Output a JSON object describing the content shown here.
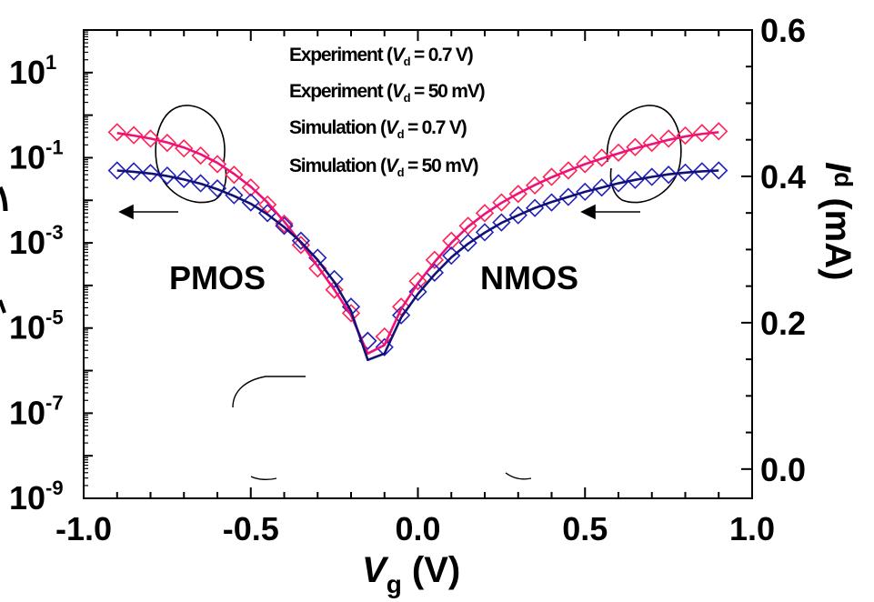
{
  "chart_data": {
    "type": "line",
    "x": [
      -0.9,
      -0.85,
      -0.8,
      -0.75,
      -0.7,
      -0.65,
      -0.6,
      -0.55,
      -0.5,
      -0.45,
      -0.4,
      -0.35,
      -0.3,
      -0.25,
      -0.2,
      -0.15,
      -0.1,
      -0.05,
      0.0,
      0.05,
      0.1,
      0.15,
      0.2,
      0.25,
      0.3,
      0.35,
      0.4,
      0.45,
      0.5,
      0.55,
      0.6,
      0.65,
      0.7,
      0.75,
      0.8,
      0.85,
      0.9
    ],
    "xlabel": {
      "base": "V",
      "sub": "g",
      "unit": " (V)"
    },
    "ylabel_right": {
      "base": "I",
      "sub": "d",
      "unit": " (mA)"
    },
    "xlim": [
      -1.0,
      1.0
    ],
    "ylim_log": [
      -9,
      2
    ],
    "ylim_right": [
      -0.04,
      0.6
    ],
    "x_ticks": [
      "-1.0",
      "-0.5",
      "0.0",
      "0.5",
      "1.0"
    ],
    "y_left_ticks": [
      {
        "base": "10",
        "exp": "1",
        "pow": 1
      },
      {
        "base": "10",
        "exp": "-1",
        "pow": -1
      },
      {
        "base": "10",
        "exp": "-3",
        "pow": -3
      },
      {
        "base": "10",
        "exp": "-5",
        "pow": -5
      },
      {
        "base": "10",
        "exp": "-7",
        "pow": -7
      },
      {
        "base": "10",
        "exp": "-9",
        "pow": -9
      }
    ],
    "y_right_ticks": [
      "0.0",
      "0.2",
      "0.4",
      "0.6"
    ],
    "series": [
      {
        "name": "Experiment (Vd = 0.7 V)",
        "kind": "marker",
        "color": "#ff2255",
        "log10_y": [
          -0.4,
          -0.47,
          -0.55,
          -0.65,
          -0.78,
          -0.95,
          -1.15,
          -1.4,
          -1.7,
          -2.1,
          -2.55,
          -3.05,
          -3.6,
          -4.1,
          -4.65,
          -5.3,
          -5.2,
          -4.5,
          -3.9,
          -3.4,
          -2.95,
          -2.6,
          -2.3,
          -2.05,
          -1.85,
          -1.65,
          -1.45,
          -1.3,
          -1.15,
          -1.0,
          -0.88,
          -0.75,
          -0.65,
          -0.55,
          -0.48,
          -0.42,
          -0.38
        ]
      },
      {
        "name": "Experiment (Vd = 50 mV)",
        "kind": "marker",
        "color": "#2222bb",
        "log10_y": [
          -1.3,
          -1.32,
          -1.36,
          -1.42,
          -1.5,
          -1.6,
          -1.72,
          -1.88,
          -2.05,
          -2.3,
          -2.6,
          -2.95,
          -3.35,
          -3.85,
          -4.5,
          -5.3,
          -5.45,
          -4.7,
          -4.15,
          -3.7,
          -3.3,
          -3.0,
          -2.75,
          -2.52,
          -2.35,
          -2.18,
          -2.05,
          -1.92,
          -1.8,
          -1.7,
          -1.6,
          -1.52,
          -1.45,
          -1.4,
          -1.35,
          -1.32,
          -1.3
        ]
      },
      {
        "name": "Simulation (Vd = 0.7 V)",
        "kind": "line",
        "color": "#ee1177",
        "log10_y": [
          -0.42,
          -0.48,
          -0.55,
          -0.64,
          -0.76,
          -0.92,
          -1.12,
          -1.38,
          -1.68,
          -2.05,
          -2.5,
          -3.0,
          -3.55,
          -4.1,
          -4.7,
          -5.6,
          -5.4,
          -4.55,
          -3.95,
          -3.45,
          -3.0,
          -2.62,
          -2.32,
          -2.06,
          -1.84,
          -1.64,
          -1.46,
          -1.3,
          -1.15,
          -1.02,
          -0.9,
          -0.78,
          -0.68,
          -0.58,
          -0.5,
          -0.44,
          -0.4
        ]
      },
      {
        "name": "Simulation (Vd = 50 mV)",
        "kind": "line",
        "color": "#111177",
        "log10_y": [
          -1.3,
          -1.33,
          -1.37,
          -1.43,
          -1.51,
          -1.61,
          -1.74,
          -1.9,
          -2.08,
          -2.33,
          -2.63,
          -2.98,
          -3.4,
          -3.92,
          -4.6,
          -5.75,
          -5.6,
          -4.75,
          -4.2,
          -3.74,
          -3.34,
          -3.02,
          -2.76,
          -2.53,
          -2.35,
          -2.18,
          -2.04,
          -1.92,
          -1.8,
          -1.7,
          -1.6,
          -1.52,
          -1.45,
          -1.39,
          -1.35,
          -1.32,
          -1.3
        ]
      }
    ],
    "annotations": [
      "PMOS",
      "NMOS"
    ]
  }
}
